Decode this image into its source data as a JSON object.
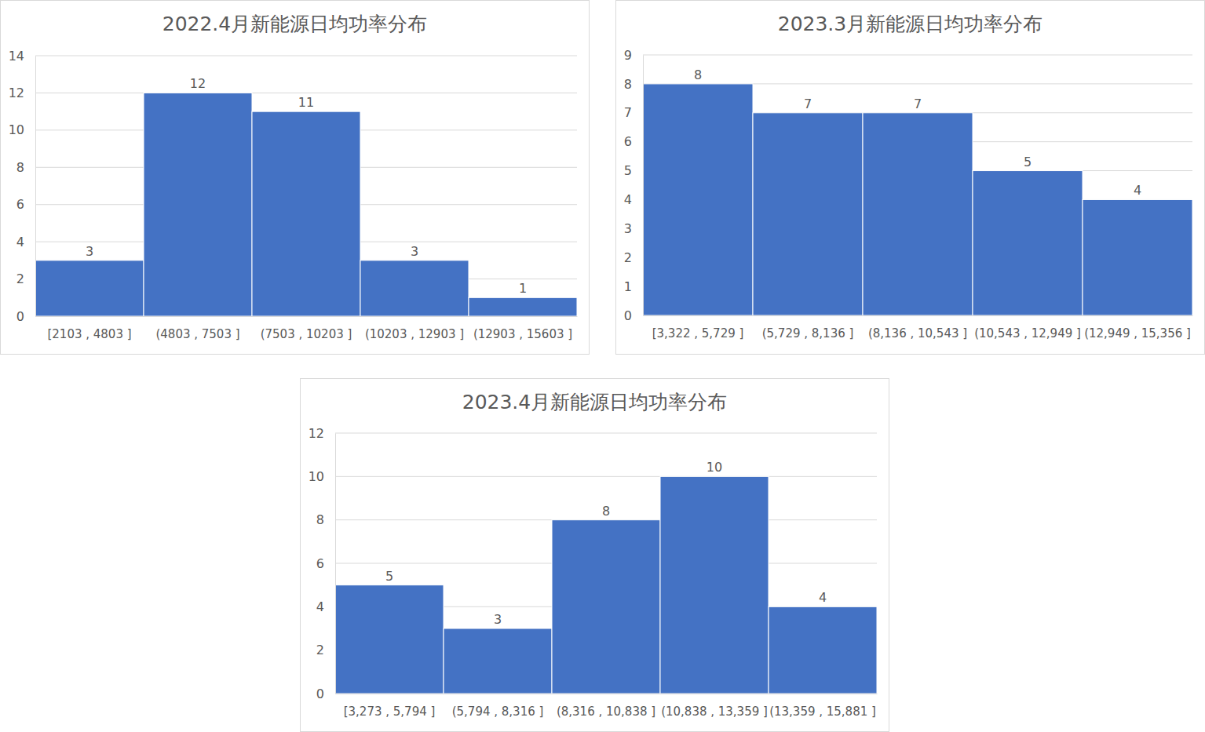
{
  "chart_data": [
    {
      "type": "bar",
      "title": "2022.4月新能源日均功率分布",
      "categories": [
        "[2103 , 4803 ]",
        "(4803 , 7503 ]",
        "(7503 , 10203 ]",
        "(10203 , 12903 ]",
        "(12903 , 15603 ]"
      ],
      "values": [
        3,
        12,
        11,
        3,
        1
      ],
      "color": "#4472c4",
      "ylim": [
        0,
        14
      ],
      "yticks": [
        0,
        2,
        4,
        6,
        8,
        10,
        12,
        14
      ],
      "grid": true,
      "data_labels": true
    },
    {
      "type": "bar",
      "title": "2023.3月新能源日均功率分布",
      "categories": [
        "[3,322 , 5,729 ]",
        "(5,729 , 8,136 ]",
        "(8,136 , 10,543 ]",
        "(10,543 , 12,949 ]",
        "(12,949 , 15,356 ]"
      ],
      "values": [
        8,
        7,
        7,
        5,
        4
      ],
      "color": "#4472c4",
      "ylim": [
        0,
        9
      ],
      "yticks": [
        0,
        1,
        2,
        3,
        4,
        5,
        6,
        7,
        8,
        9
      ],
      "grid": true,
      "data_labels": true
    },
    {
      "type": "bar",
      "title": "2023.4月新能源日均功率分布",
      "categories": [
        "[3,273 , 5,794 ]",
        "(5,794 , 8,316 ]",
        "(8,316 , 10,838 ]",
        "(10,838 , 13,359 ]",
        "(13,359 , 15,881 ]"
      ],
      "values": [
        5,
        3,
        8,
        10,
        4
      ],
      "color": "#4472c4",
      "ylim": [
        0,
        12
      ],
      "yticks": [
        0,
        2,
        4,
        6,
        8,
        10,
        12
      ],
      "grid": true,
      "data_labels": true
    }
  ]
}
